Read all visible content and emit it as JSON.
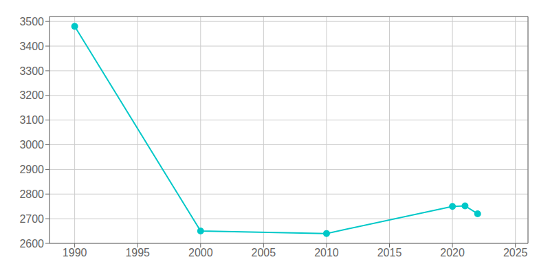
{
  "chart_data": {
    "type": "line",
    "x": [
      1990,
      2000,
      2010,
      2020,
      2021,
      2022
    ],
    "values": [
      3480,
      2650,
      2640,
      2750,
      2752,
      2720
    ],
    "color": "#00c8c8",
    "marker": "circle",
    "xlim": [
      1988,
      2026
    ],
    "ylim": [
      2600,
      3520
    ],
    "xticks": [
      1990,
      1995,
      2000,
      2005,
      2010,
      2015,
      2020,
      2025
    ],
    "yticks": [
      2600,
      2700,
      2800,
      2900,
      3000,
      3100,
      3200,
      3300,
      3400,
      3500
    ],
    "grid": true
  }
}
